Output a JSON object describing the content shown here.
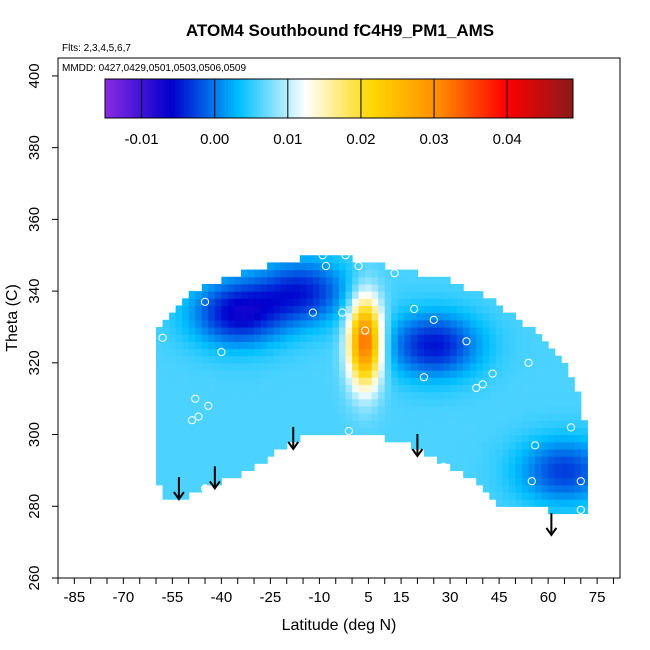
{
  "chart_data": {
    "type": "heatmap",
    "title": "ATOM4 Southbound fC4H9_PM1_AMS",
    "flights_note": "Flts: 2,3,4,5,6,7",
    "dates_note": "MMDD: 0427,0429,0501,0503,0506,0509",
    "xlabel": "Latitude (deg N)",
    "ylabel": "Theta (C)",
    "xlim": [
      -90,
      82
    ],
    "ylim": [
      260,
      405
    ],
    "x_ticks": [
      -85,
      -70,
      -55,
      -40,
      -25,
      -10,
      5,
      15,
      30,
      45,
      60,
      75
    ],
    "x_tick_labels": [
      "-85",
      "-70",
      "-55",
      "-40",
      "-25",
      "-10",
      "5",
      "15",
      "30",
      "45",
      "60",
      "75"
    ],
    "y_ticks": [
      260,
      280,
      300,
      320,
      340,
      360,
      380,
      400
    ],
    "y_tick_labels": [
      "260",
      "280",
      "300",
      "320",
      "340",
      "360",
      "380",
      "400"
    ],
    "colorbar": {
      "range": [
        -0.015,
        0.049
      ],
      "ticks": [
        -0.01,
        0.0,
        0.01,
        0.02,
        0.03,
        0.04
      ],
      "tick_labels": [
        "-0.01",
        "0.00",
        "0.01",
        "0.02",
        "0.03",
        "0.04"
      ],
      "colors": [
        "#8a2be2",
        "#0000cd",
        "#00bfff",
        "#ffffff",
        "#ffd700",
        "#ff8c00",
        "#ff0000",
        "#8b1a1a"
      ]
    },
    "outline_top": [
      [
        -60,
        328
      ],
      [
        -55,
        334
      ],
      [
        -50,
        340
      ],
      [
        -40,
        343
      ],
      [
        -30,
        346
      ],
      [
        -20,
        348
      ],
      [
        -10,
        350
      ],
      [
        0,
        349
      ],
      [
        10,
        347
      ],
      [
        20,
        345
      ],
      [
        30,
        343
      ],
      [
        40,
        339
      ],
      [
        50,
        333
      ],
      [
        60,
        326
      ],
      [
        65,
        320
      ],
      [
        70,
        310
      ],
      [
        72,
        300
      ]
    ],
    "outline_bottom": [
      [
        72,
        279
      ],
      [
        68,
        279
      ],
      [
        60,
        279
      ],
      [
        45,
        281
      ],
      [
        35,
        289
      ],
      [
        25,
        294
      ],
      [
        15,
        298
      ],
      [
        5,
        300
      ],
      [
        -3,
        301
      ],
      [
        -8,
        301
      ],
      [
        -15,
        299
      ],
      [
        -25,
        294
      ],
      [
        -33,
        289
      ],
      [
        -40,
        287
      ],
      [
        -45,
        285
      ],
      [
        -50,
        283
      ],
      [
        -55,
        282
      ],
      [
        -58,
        283
      ],
      [
        -60,
        290
      ]
    ],
    "field_features": [
      {
        "type": "max",
        "x": 4,
        "y": 326,
        "value": 0.034
      },
      {
        "type": "min",
        "x": -35,
        "y": 334,
        "value": -0.006
      },
      {
        "type": "min",
        "x": 25,
        "y": 325,
        "value": -0.005
      },
      {
        "type": "min",
        "x": -15,
        "y": 340,
        "value": -0.004
      },
      {
        "type": "min",
        "x": 65,
        "y": 290,
        "value": -0.003
      }
    ],
    "background_value": 0.006,
    "sample_points": [
      [
        -58,
        327
      ],
      [
        -45,
        337
      ],
      [
        -48,
        310
      ],
      [
        -49,
        304
      ],
      [
        -47,
        305
      ],
      [
        -44,
        308
      ],
      [
        -40,
        323
      ],
      [
        -45,
        285
      ],
      [
        -2,
        350
      ],
      [
        -8,
        347
      ],
      [
        2,
        347
      ],
      [
        -12,
        334
      ],
      [
        -3,
        334
      ],
      [
        4,
        329
      ],
      [
        -1,
        301
      ],
      [
        13,
        345
      ],
      [
        19,
        335
      ],
      [
        22,
        316
      ],
      [
        25,
        332
      ],
      [
        35,
        326
      ],
      [
        38,
        313
      ],
      [
        40,
        314
      ],
      [
        43,
        317
      ],
      [
        28,
        291
      ],
      [
        40,
        280
      ],
      [
        54,
        320
      ],
      [
        56,
        297
      ],
      [
        55,
        287
      ],
      [
        62,
        328
      ],
      [
        67,
        302
      ],
      [
        70,
        287
      ],
      [
        70,
        279
      ],
      [
        -9,
        350
      ]
    ],
    "arrows_x": [
      -53,
      -42,
      -18,
      20,
      61
    ],
    "arrows_y_tip": [
      282,
      285,
      296,
      294,
      272
    ]
  }
}
